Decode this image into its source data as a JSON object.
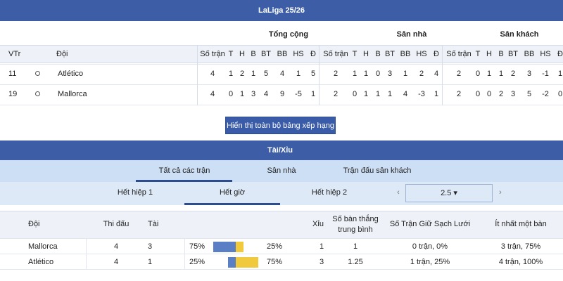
{
  "header": {
    "title": "LaLiga 25/26"
  },
  "standings": {
    "rank_header": "VTr",
    "team_header": "Đội",
    "groups": [
      {
        "name": "Tổng cộng",
        "columns": [
          "Số trận",
          "T",
          "H",
          "B",
          "BT",
          "BB",
          "HS",
          "Đ"
        ]
      },
      {
        "name": "Sân nhà",
        "columns": [
          "Số trận",
          "T",
          "H",
          "B",
          "BT",
          "BB",
          "HS",
          "Đ"
        ]
      },
      {
        "name": "Sân khách",
        "columns": [
          "Số trận",
          "T",
          "H",
          "B",
          "BT",
          "BB",
          "HS",
          "Đ"
        ]
      }
    ],
    "rows": [
      {
        "rank": "11",
        "team": "Atlético",
        "stats": [
          [
            4,
            1,
            2,
            1,
            5,
            4,
            1,
            5
          ],
          [
            2,
            1,
            1,
            0,
            3,
            1,
            2,
            4
          ],
          [
            2,
            0,
            1,
            1,
            2,
            3,
            -1,
            1
          ]
        ]
      },
      {
        "rank": "19",
        "team": "Mallorca",
        "stats": [
          [
            4,
            0,
            1,
            3,
            4,
            9,
            -5,
            1
          ],
          [
            2,
            0,
            1,
            1,
            1,
            4,
            -3,
            1
          ],
          [
            2,
            0,
            0,
            2,
            3,
            5,
            -2,
            0
          ]
        ]
      }
    ],
    "button": "Hiển thị toàn bộ bảng xếp hạng"
  },
  "over_under": {
    "title": "Tài/Xỉu",
    "tabs": [
      "Tất cả các trận",
      "Sân nhà",
      "Trận đấu sân khách"
    ],
    "subtabs": [
      "Hết hiệp 1",
      "Hết giờ",
      "Hết hiệp 2"
    ],
    "prev": "‹",
    "next": "›",
    "line": "2.5 ▾",
    "headers": {
      "team": "Đội",
      "played": "Thi đấu",
      "over": "Tài",
      "under": "Xỉu",
      "avg_goals": "Số bàn thắng trung bình",
      "clean_sheets": "Số Trận Giữ Sạch Lưới",
      "scored": "Ít nhất một bàn"
    },
    "rows": [
      {
        "team": "Mallorca",
        "played": 4,
        "over_count": 3,
        "over_pct": {
          "value": 75,
          "label": "75%"
        },
        "under_pct": {
          "value": 25,
          "label": "25%"
        },
        "under_count": 1,
        "avg_goals": 1,
        "clean_sheets": "0 trận, 0%",
        "scored": "3 trận, 75%"
      },
      {
        "team": "Atlético",
        "played": 4,
        "over_count": 1,
        "over_pct": {
          "value": 25,
          "label": "25%"
        },
        "under_pct": {
          "value": 75,
          "label": "75%"
        },
        "under_count": 3,
        "avg_goals": 1.25,
        "clean_sheets": "1 trận, 25%",
        "scored": "4 trận, 100%"
      }
    ]
  }
}
